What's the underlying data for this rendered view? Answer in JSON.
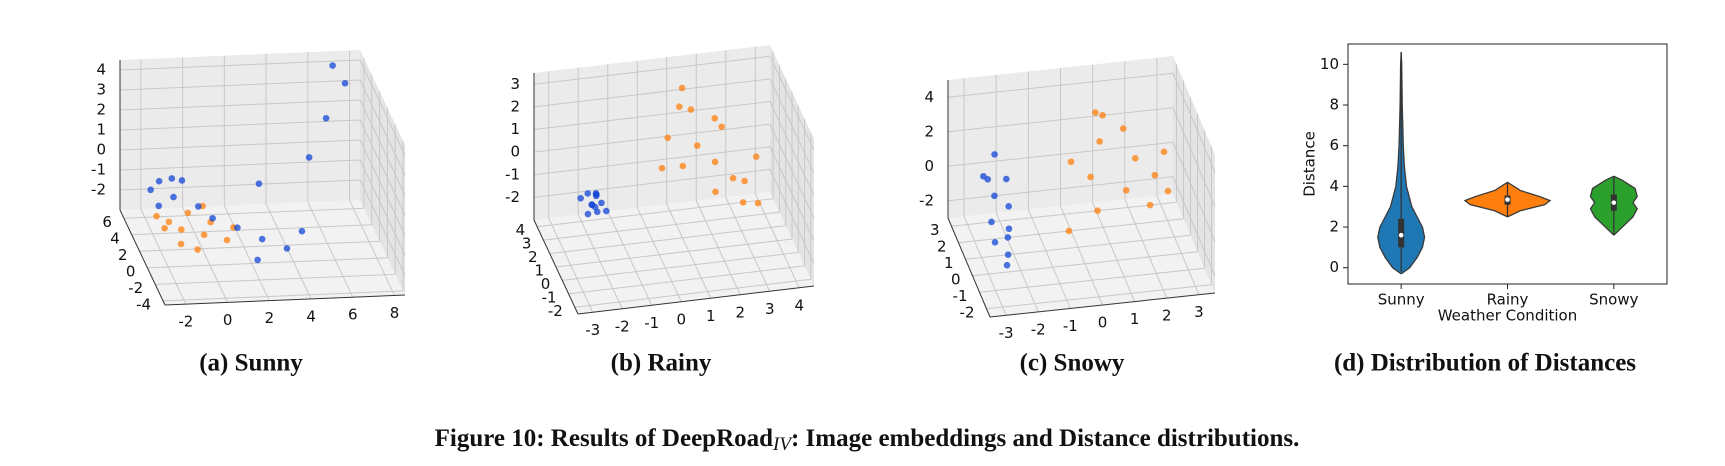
{
  "chart_data": [
    {
      "type": "scatter3d",
      "caption": "(a) Sunny",
      "xlim": [
        -3,
        8.5
      ],
      "ylim": [
        -4.5,
        7
      ],
      "zlim": [
        -3,
        4.5
      ],
      "xticks": [
        -2,
        0,
        2,
        4,
        6,
        8
      ],
      "yticks": [
        -4,
        -2,
        0,
        2,
        4,
        6
      ],
      "zticks": [
        -2,
        -1,
        0,
        1,
        2,
        3,
        4
      ],
      "grid": true,
      "series": [
        {
          "color": "#ff7f0e",
          "x": [
            -1.5,
            -1.0,
            -0.5,
            0.0,
            0.5,
            -2.0,
            1.0,
            -1.2,
            0.3,
            1.5,
            -0.5,
            -1.8
          ],
          "y": [
            2.5,
            2.0,
            3.0,
            1.5,
            2.5,
            3.0,
            1.0,
            1.0,
            3.5,
            2.0,
            0.5,
            2.0
          ],
          "z": [
            -1.8,
            -2.0,
            -1.6,
            -2.1,
            -1.9,
            -1.7,
            -2.2,
            -2.3,
            -1.5,
            -2.0,
            -2.4,
            -1.9
          ]
        },
        {
          "color": "#1245d6",
          "x": [
            -2.0,
            -1.5,
            -1.0,
            -0.5,
            -1.8,
            -0.8,
            0.0,
            0.5,
            1.5,
            2.5,
            3.5,
            4.5,
            2.0,
            5.5,
            6.5,
            7.5,
            7.0,
            3.0
          ],
          "y": [
            4.5,
            5.0,
            4.0,
            4.5,
            3.5,
            5.5,
            3.0,
            2.0,
            1.0,
            0.0,
            -1.0,
            0.5,
            -1.5,
            4.0,
            5.0,
            5.5,
            6.0,
            3.5
          ],
          "z": [
            -1.0,
            -0.8,
            -1.2,
            -0.6,
            -1.4,
            -0.9,
            -1.3,
            -1.5,
            -1.6,
            -1.8,
            -1.9,
            -1.7,
            -2.2,
            0.5,
            2.0,
            3.5,
            4.2,
            -0.5
          ]
        }
      ]
    },
    {
      "type": "scatter3d",
      "caption": "(b) Rainy",
      "xlim": [
        -3.5,
        4.5
      ],
      "ylim": [
        -2.5,
        4.5
      ],
      "zlim": [
        -3,
        3.5
      ],
      "xticks": [
        -3,
        -2,
        -1,
        0,
        1,
        2,
        3,
        4
      ],
      "yticks": [
        -2,
        -1,
        0,
        1,
        2,
        3,
        4
      ],
      "zticks": [
        -2,
        -1,
        0,
        1,
        2,
        3
      ],
      "grid": true,
      "series": [
        {
          "color": "#1245d6",
          "x": [
            -2.6,
            -2.4,
            -2.8,
            -2.3,
            -2.5,
            -2.7,
            -2.2,
            -2.9,
            -2.5,
            -2.4,
            -2.6,
            -2.3
          ],
          "y": [
            -0.5,
            -0.2,
            -0.8,
            -0.6,
            0.0,
            -0.3,
            -0.9,
            -0.1,
            -0.7,
            -0.4,
            -1.0,
            0.2
          ],
          "z": [
            0.5,
            0.8,
            0.3,
            0.6,
            0.2,
            0.9,
            0.4,
            0.6,
            1.0,
            0.1,
            0.7,
            0.5
          ]
        },
        {
          "color": "#ff7f0e",
          "x": [
            0.5,
            1.0,
            1.5,
            2.0,
            2.5,
            3.0,
            1.2,
            0.8,
            2.2,
            3.5,
            1.8,
            2.8,
            0.2,
            1.5,
            2.5,
            3.2
          ],
          "y": [
            2.0,
            2.5,
            2.0,
            1.5,
            1.0,
            1.5,
            3.0,
            1.0,
            2.5,
            2.0,
            0.5,
            0.8,
            1.5,
            3.0,
            2.8,
            0.3
          ],
          "z": [
            1.5,
            2.5,
            1.0,
            0.5,
            0.0,
            -0.5,
            3.0,
            0.8,
            1.8,
            0.2,
            -0.2,
            -1.0,
            0.5,
            2.0,
            1.2,
            -0.8
          ]
        }
      ]
    },
    {
      "type": "scatter3d",
      "caption": "(c) Snowy",
      "xlim": [
        -3.5,
        3.5
      ],
      "ylim": [
        -2.5,
        3.5
      ],
      "zlim": [
        -3,
        5
      ],
      "xticks": [
        -3,
        -2,
        -1,
        0,
        1,
        2,
        3
      ],
      "yticks": [
        -2,
        -1,
        0,
        1,
        2,
        3
      ],
      "zticks": [
        -2,
        0,
        2,
        4
      ],
      "grid": true,
      "series": [
        {
          "color": "#ff7f0e",
          "x": [
            0.0,
            0.5,
            1.0,
            1.5,
            2.0,
            2.5,
            3.0,
            0.5,
            1.2,
            2.2,
            -0.5,
            1.8,
            2.8,
            0.8
          ],
          "y": [
            2.0,
            1.5,
            2.5,
            1.0,
            2.0,
            1.5,
            2.5,
            0.5,
            3.0,
            0.8,
            0.0,
            2.8,
            1.0,
            2.2
          ],
          "z": [
            1.0,
            0.5,
            1.5,
            0.0,
            0.8,
            0.2,
            0.5,
            -0.5,
            2.5,
            -0.8,
            -1.0,
            1.8,
            -0.3,
            3.5
          ]
        },
        {
          "color": "#1245d6",
          "x": [
            -2.8,
            -2.6,
            -2.4,
            -2.7,
            -2.5,
            -2.2,
            -2.9,
            -2.3,
            -2.6,
            -2.1,
            -2.8,
            -2.4
          ],
          "y": [
            0.5,
            1.0,
            0.0,
            1.5,
            -0.5,
            0.8,
            1.2,
            0.3,
            -0.8,
            1.6,
            0.0,
            1.9
          ],
          "z": [
            -0.5,
            0.5,
            -1.0,
            1.0,
            -1.5,
            0.0,
            1.5,
            -0.8,
            -1.8,
            0.8,
            -1.2,
            2.0
          ]
        }
      ]
    },
    {
      "type": "violin",
      "caption": "(d) Distribution of Distances",
      "x_label": "Weather Condition",
      "y_label": "Distance",
      "categories": [
        "Sunny",
        "Rainy",
        "Snowy"
      ],
      "ylim": [
        -0.8,
        11
      ],
      "yticks": [
        0,
        2,
        4,
        6,
        8,
        10
      ],
      "series": [
        {
          "color": "#1f77b4",
          "kde_y": [
            -0.3,
            0,
            0.5,
            1,
            1.5,
            2,
            2.5,
            3,
            4,
            5,
            6,
            8,
            10,
            10.6
          ],
          "kde_width": [
            0,
            0.08,
            0.15,
            0.2,
            0.22,
            0.2,
            0.15,
            0.1,
            0.05,
            0.03,
            0.02,
            0.01,
            0.005,
            0
          ],
          "min": -0.2,
          "q1": 1.0,
          "median": 1.6,
          "q3": 2.4,
          "max": 10.6
        },
        {
          "color": "#ff7f0e",
          "kde_y": [
            2.5,
            2.8,
            3.1,
            3.3,
            3.5,
            3.8,
            4.2
          ],
          "kde_width": [
            0,
            0.12,
            0.35,
            0.4,
            0.3,
            0.12,
            0
          ],
          "min": 2.5,
          "q1": 3.1,
          "median": 3.35,
          "q3": 3.55,
          "max": 4.2
        },
        {
          "color": "#2ca02c",
          "kde_y": [
            1.6,
            2.0,
            2.5,
            2.9,
            3.2,
            3.5,
            3.9,
            4.3,
            4.5
          ],
          "kde_width": [
            0,
            0.08,
            0.18,
            0.22,
            0.18,
            0.22,
            0.2,
            0.08,
            0
          ],
          "min": 1.6,
          "q1": 2.8,
          "median": 3.2,
          "q3": 3.6,
          "max": 4.5
        }
      ]
    }
  ],
  "figure_caption": {
    "prefix": "Figure 10: Results of DeepRoad",
    "subscript": "IV",
    "suffix": ": Image embeddings and Distance distributions."
  }
}
